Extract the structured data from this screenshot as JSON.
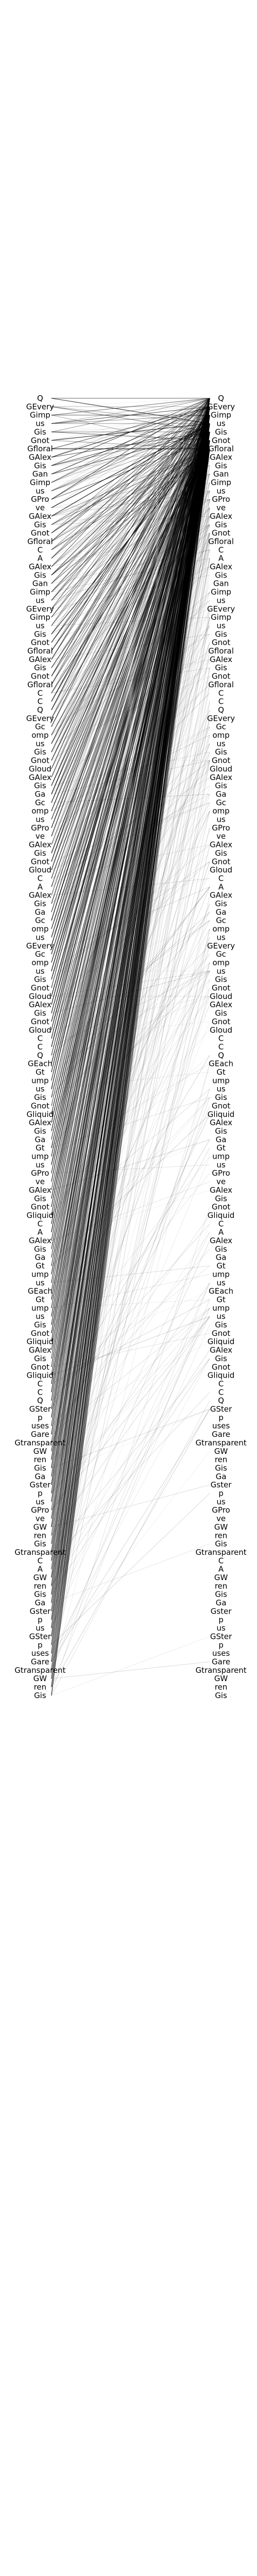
{
  "diagram": {
    "left_labels": [
      "Q",
      "GEvery",
      "Gimp",
      "us",
      "Gis",
      "Gnot",
      "Gfloral",
      "GAlex",
      "Gis",
      "Gan",
      "Gimp",
      "us",
      "GPro",
      "ve",
      "GAlex",
      "Gis",
      "Gnot",
      "Gfloral",
      "C",
      "A",
      "GAlex",
      "Gis",
      "Gan",
      "Gimp",
      "us",
      "GEvery",
      "Gimp",
      "us",
      "Gis",
      "Gnot",
      "Gfloral",
      "GAlex",
      "Gis",
      "Gnot",
      "Gfloral",
      "C",
      "C",
      "Q",
      "GEvery",
      "Gc",
      "omp",
      "us",
      "Gis",
      "Gnot",
      "Gloud",
      "GAlex",
      "Gis",
      "Ga",
      "Gc",
      "omp",
      "us",
      "GPro",
      "ve",
      "GAlex",
      "Gis",
      "Gnot",
      "Gloud",
      "C",
      "A",
      "GAlex",
      "Gis",
      "Ga",
      "Gc",
      "omp",
      "us",
      "GEvery",
      "Gc",
      "omp",
      "us",
      "Gis",
      "Gnot",
      "Gloud",
      "GAlex",
      "Gis",
      "Gnot",
      "Gloud",
      "C",
      "C",
      "Q",
      "GEach",
      "Gt",
      "ump",
      "us",
      "Gis",
      "Gnot",
      "Gliquid",
      "GAlex",
      "Gis",
      "Ga",
      "Gt",
      "ump",
      "us",
      "GPro",
      "ve",
      "GAlex",
      "Gis",
      "Gnot",
      "Gliquid",
      "C",
      "A",
      "GAlex",
      "Gis",
      "Ga",
      "Gt",
      "ump",
      "us",
      "GEach",
      "Gt",
      "ump",
      "us",
      "Gis",
      "Gnot",
      "Gliquid",
      "GAlex",
      "Gis",
      "Gnot",
      "Gliquid",
      "C",
      "C",
      "Q",
      "GSter",
      "p",
      "uses",
      "Gare",
      "Gtransparent",
      "GW",
      "ren",
      "Gis",
      "Ga",
      "Gster",
      "p",
      "us",
      "GPro",
      "ve",
      "GW",
      "ren",
      "Gis",
      "Gtransparent",
      "C",
      "A",
      "GW",
      "ren",
      "Gis",
      "Ga",
      "Gster",
      "p",
      "us",
      "GSter",
      "p",
      "uses",
      "Gare",
      "Gtransparent",
      "GW",
      "ren",
      "Gis"
    ],
    "right_labels": [
      "Q",
      "GEvery",
      "Gimp",
      "us",
      "Gis",
      "Gnot",
      "Gfloral",
      "GAlex",
      "Gis",
      "Gan",
      "Gimp",
      "us",
      "GPro",
      "ve",
      "GAlex",
      "Gis",
      "Gnot",
      "Gfloral",
      "C",
      "A",
      "GAlex",
      "Gis",
      "Gan",
      "Gimp",
      "us",
      "GEvery",
      "Gimp",
      "us",
      "Gis",
      "Gnot",
      "Gfloral",
      "GAlex",
      "Gis",
      "Gnot",
      "Gfloral",
      "C",
      "C",
      "Q",
      "GEvery",
      "Gc",
      "omp",
      "us",
      "Gis",
      "Gnot",
      "Gloud",
      "GAlex",
      "Gis",
      "Ga",
      "Gc",
      "omp",
      "us",
      "GPro",
      "ve",
      "GAlex",
      "Gis",
      "Gnot",
      "Gloud",
      "C",
      "A",
      "GAlex",
      "Gis",
      "Ga",
      "Gc",
      "omp",
      "us",
      "GEvery",
      "Gc",
      "omp",
      "us",
      "Gis",
      "Gnot",
      "Gloud",
      "GAlex",
      "Gis",
      "Gnot",
      "Gloud",
      "C",
      "C",
      "Q",
      "GEach",
      "Gt",
      "ump",
      "us",
      "Gis",
      "Gnot",
      "Gliquid",
      "GAlex",
      "Gis",
      "Ga",
      "Gt",
      "ump",
      "us",
      "GPro",
      "ve",
      "GAlex",
      "Gis",
      "Gnot",
      "Gliquid",
      "C",
      "A",
      "GAlex",
      "Gis",
      "Ga",
      "Gt",
      "ump",
      "us",
      "GEach",
      "Gt",
      "ump",
      "us",
      "Gis",
      "Gnot",
      "Gliquid",
      "GAlex",
      "Gis",
      "Gnot",
      "Gliquid",
      "C",
      "C",
      "Q",
      "GSter",
      "p",
      "uses",
      "Gare",
      "Gtransparent",
      "GW",
      "ren",
      "Gis",
      "Ga",
      "Gster",
      "p",
      "us",
      "GPro",
      "ve",
      "GW",
      "ren",
      "Gis",
      "Gtransparent",
      "C",
      "A",
      "GW",
      "ren",
      "Gis",
      "Ga",
      "Gster",
      "p",
      "us",
      "GSter",
      "p",
      "uses",
      "Gare",
      "Gtransparent",
      "GW",
      "ren",
      "Gis"
    ],
    "line_color": "#000000",
    "text_color": "#000000",
    "background": "#ffffff"
  }
}
